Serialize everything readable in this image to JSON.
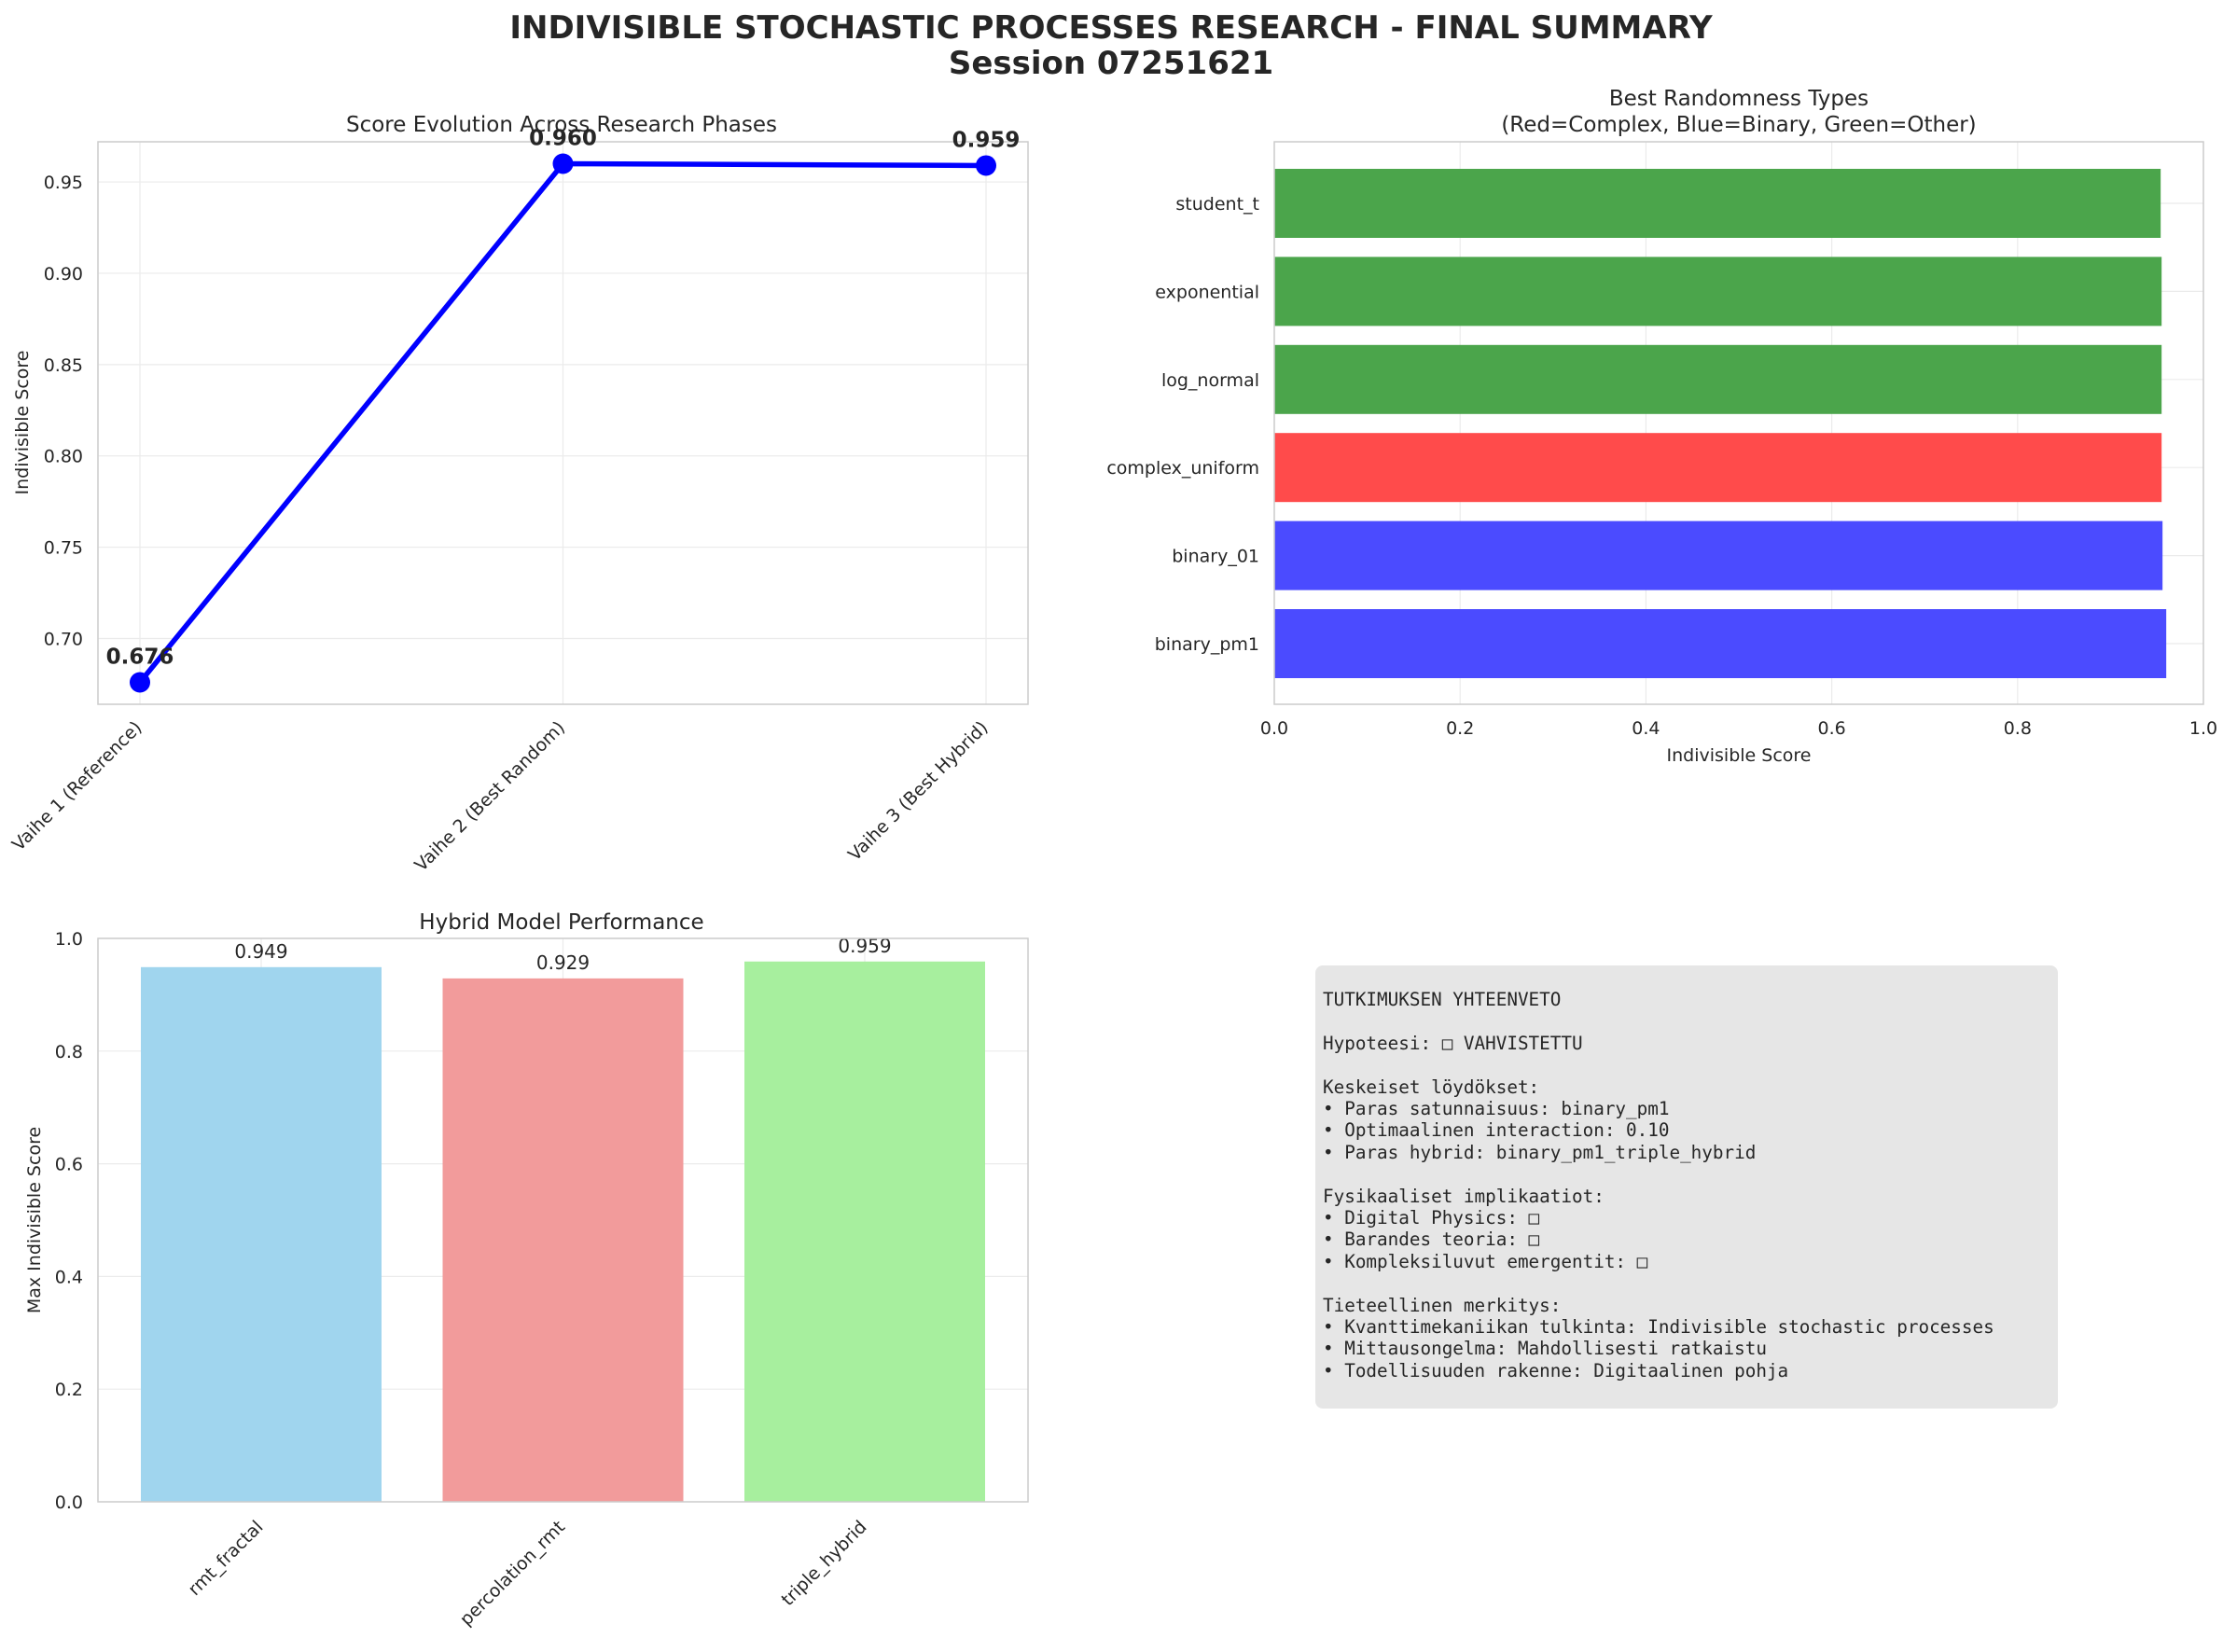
{
  "figure": {
    "title_line1": "INDIVISIBLE STOCHASTIC PROCESSES RESEARCH - FINAL SUMMARY",
    "title_line2": "Session 07251621"
  },
  "chart_data": [
    {
      "type": "line",
      "title": "Score Evolution Across Research Phases",
      "xlabel": "",
      "ylabel": "Indivisible Score",
      "categories": [
        "Vaihe 1 (Reference)",
        "Vaihe 2 (Best Random)",
        "Vaihe 3 (Best Hybrid)"
      ],
      "values": [
        0.676,
        0.96,
        0.959
      ],
      "data_labels": [
        "0.676",
        "0.960",
        "0.959"
      ],
      "ylim": [
        0.664,
        0.972
      ],
      "yticks": [
        "0.70",
        "0.75",
        "0.80",
        "0.85",
        "0.90",
        "0.95"
      ],
      "ytick_values": [
        0.7,
        0.75,
        0.8,
        0.85,
        0.9,
        0.95
      ],
      "grid": true,
      "color": "#0000ff"
    },
    {
      "type": "bar",
      "orientation": "horizontal",
      "title_line1": "Best Randomness Types",
      "title_line2": "(Red=Complex, Blue=Binary, Green=Other)",
      "xlabel": "Indivisible Score",
      "ylabel": "",
      "categories": [
        "binary_pm1",
        "binary_01",
        "complex_uniform",
        "log_normal",
        "exponential",
        "student_t"
      ],
      "values": [
        0.96,
        0.956,
        0.955,
        0.955,
        0.955,
        0.954
      ],
      "colors": [
        "#4b4bff",
        "#4b4bff",
        "#ff4b4b",
        "#4ba54b",
        "#4ba54b",
        "#4ba54b"
      ],
      "xlim": [
        0,
        1.0
      ],
      "xticks": [
        "0.0",
        "0.2",
        "0.4",
        "0.6",
        "0.8",
        "1.0"
      ],
      "xtick_values": [
        0,
        0.2,
        0.4,
        0.6,
        0.8,
        1.0
      ],
      "grid": true
    },
    {
      "type": "bar",
      "title": "Hybrid Model Performance",
      "xlabel": "",
      "ylabel": "Max Indivisible Score",
      "categories": [
        "rmt_fractal",
        "percolation_rmt",
        "triple_hybrid"
      ],
      "values": [
        0.949,
        0.929,
        0.959
      ],
      "data_labels": [
        "0.949",
        "0.929",
        "0.959"
      ],
      "colors": [
        "#a0d5ee",
        "#f29b9b",
        "#a7ef9e"
      ],
      "ylim": [
        0,
        1.0
      ],
      "yticks": [
        "0.0",
        "0.2",
        "0.4",
        "0.6",
        "0.8",
        "1.0"
      ],
      "ytick_values": [
        0,
        0.2,
        0.4,
        0.6,
        0.8,
        1.0
      ],
      "grid": true
    }
  ],
  "summary": {
    "heading": "TUTKIMUKSEN YHTEENVETO",
    "hypothesis": "Hypoteesi: □ VAHVISTETTU",
    "findings_heading": "Keskeiset löydökset:",
    "findings": [
      "• Paras satunnaisuus: binary_pm1",
      "• Optimaalinen interaction: 0.10",
      "• Paras hybrid: binary_pm1_triple_hybrid"
    ],
    "implications_heading": "Fysikaaliset implikaatiot:",
    "implications": [
      "• Digital Physics: □",
      "• Barandes teoria: □",
      "• Kompleksiluvut emergentit: □"
    ],
    "significance_heading": "Tieteellinen merkitys:",
    "significance": [
      "• Kvanttimekaniikan tulkinta: Indivisible stochastic processes",
      "• Mittausongelma: Mahdollisesti ratkaistu",
      "• Todellisuuden rakenne: Digitaalinen pohja"
    ]
  }
}
